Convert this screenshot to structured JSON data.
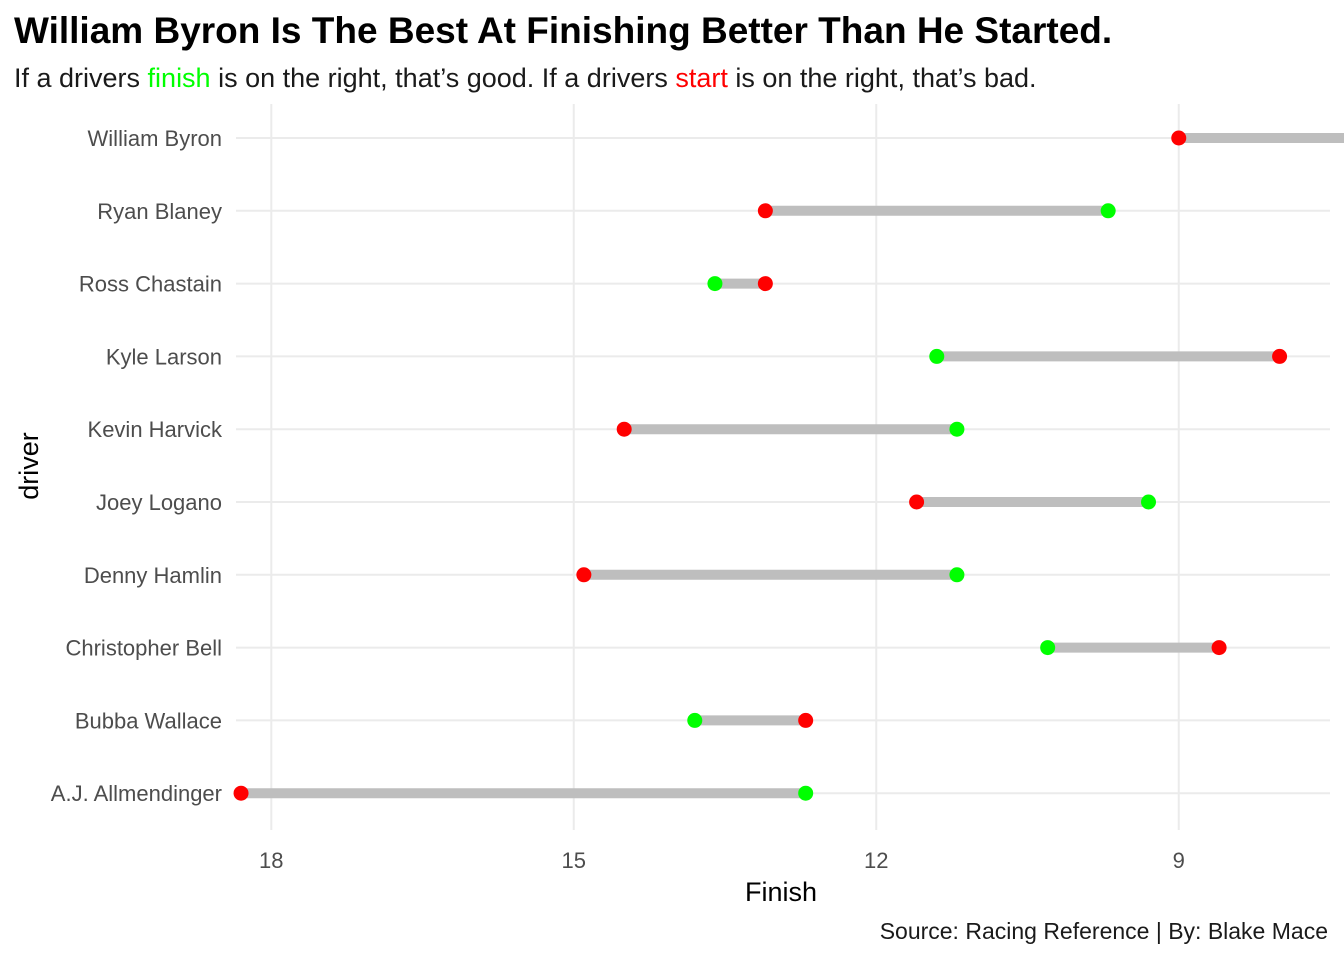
{
  "chart_data": {
    "type": "dumbbell",
    "title": "William Byron Is The Best At Finishing Better Than He Started.",
    "subtitle": {
      "parts": [
        {
          "text": "If a drivers ",
          "color": "#1a1a1a"
        },
        {
          "text": "finish",
          "color": "#00ff00"
        },
        {
          "text": " is on the right, that’s good. If a drivers ",
          "color": "#1a1a1a"
        },
        {
          "text": "start",
          "color": "#ff0000"
        },
        {
          "text": " is on the right, that’s bad.",
          "color": "#1a1a1a"
        }
      ]
    },
    "caption": "Source: Racing Reference | By: Blake Mace",
    "xlabel": "Finish",
    "ylabel": "driver",
    "x_reversed": true,
    "xlim": [
      18.35,
      7.5
    ],
    "xticks": [
      18,
      15,
      12,
      9
    ],
    "grid": true,
    "colors": {
      "finish": "#00ff00",
      "start": "#ff0000",
      "segment": "#bebebe",
      "grid": "#ebebeb"
    },
    "categories": [
      "William Byron",
      "Ryan Blaney",
      "Ross Chastain",
      "Kyle Larson",
      "Kevin Harvick",
      "Joey Logano",
      "Denny Hamlin",
      "Christopher Bell",
      "Bubba Wallace",
      "A.J. Allmendinger"
    ],
    "series": [
      {
        "name": "start",
        "values": [
          9.0,
          13.1,
          13.1,
          8.0,
          14.5,
          11.6,
          14.9,
          8.6,
          12.7,
          18.3
        ]
      },
      {
        "name": "finish",
        "values": [
          7.1,
          9.7,
          13.6,
          11.4,
          11.2,
          9.3,
          11.2,
          10.3,
          13.8,
          12.7
        ]
      }
    ]
  }
}
